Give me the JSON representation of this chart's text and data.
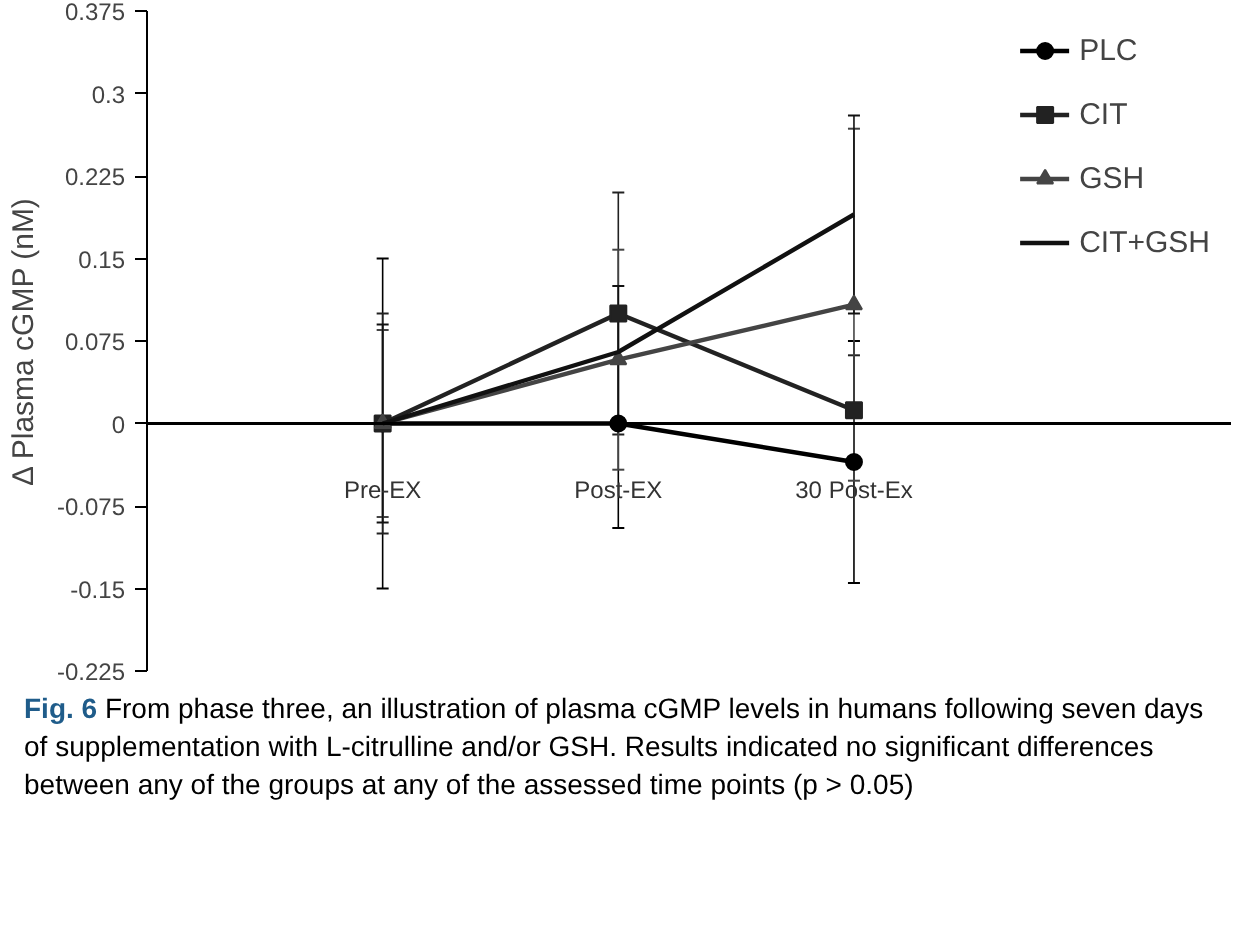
{
  "chart_data": {
    "type": "line",
    "ylabel": "Δ Plasma cGMP (nM)",
    "categories": [
      "Pre-EX",
      "Post-EX",
      "30 Post-Ex"
    ],
    "ylim": [
      -0.225,
      0.375
    ],
    "yticks": [
      -0.225,
      -0.15,
      -0.075,
      0,
      0.075,
      0.15,
      0.225,
      0.3,
      0.375
    ],
    "grid": false,
    "legend": "right",
    "series": [
      {
        "name": "PLC",
        "color": "#000000",
        "marker": "circle",
        "values": [
          0,
          0,
          -0.035
        ],
        "errors": [
          0.15,
          0.095,
          0.11
        ]
      },
      {
        "name": "CIT",
        "color": "#222222",
        "marker": "square",
        "values": [
          0,
          0.1,
          0.012
        ],
        "errors": [
          0.1,
          0.11,
          0.05
        ]
      },
      {
        "name": "GSH",
        "color": "#444444",
        "marker": "triangle",
        "values": [
          0,
          0.058,
          0.108
        ],
        "errors": [
          0.085,
          0.1,
          0.16
        ]
      },
      {
        "name": "CIT+GSH",
        "color": "#111111",
        "marker": "none",
        "values": [
          0,
          0.065,
          0.19
        ],
        "errors": [
          0.09,
          0.06,
          0.09
        ]
      }
    ],
    "annotations": [
      "Fig. 6 From phase three, an illustration of plasma cGMP levels in humans following seven days of supplementation with L-citrulline and/or GSH. Results indicated no significant differences between any of the groups at any of the assessed time points (p > 0.05)"
    ]
  }
}
